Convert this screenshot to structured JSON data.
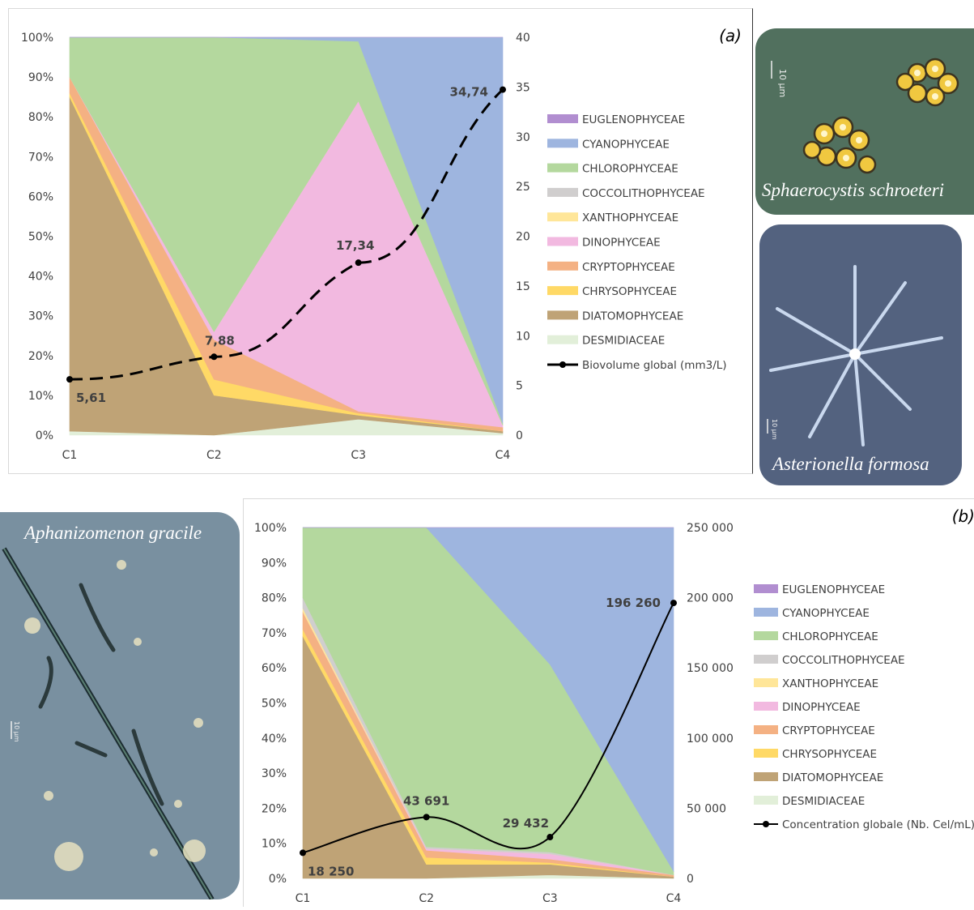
{
  "chart_data": [
    {
      "type": "area",
      "panel_label": "(a)",
      "stacking": "percent",
      "categories": [
        "C1",
        "C2",
        "C3",
        "C4"
      ],
      "ylim_left": [
        0,
        100
      ],
      "yticks_left": [
        "0%",
        "10%",
        "20%",
        "30%",
        "40%",
        "50%",
        "60%",
        "70%",
        "80%",
        "90%",
        "100%"
      ],
      "ylim_right": [
        0,
        40
      ],
      "yticks_right": [
        "0",
        "5",
        "10",
        "15",
        "20",
        "25",
        "30",
        "35",
        "40"
      ],
      "legend_position": "right",
      "grid": false,
      "series": [
        {
          "name": "DESMIDIACEAE",
          "color": "#e2efd9",
          "values": [
            1,
            0,
            4,
            0.5
          ]
        },
        {
          "name": "DIATOMOPHYCEAE",
          "color": "#bfa376",
          "values": [
            84,
            10,
            1,
            0.5
          ]
        },
        {
          "name": "CHRYSOPHYCEAE",
          "color": "#ffd966",
          "values": [
            1,
            4,
            0.5,
            0
          ]
        },
        {
          "name": "CRYPTOPHYCEAE",
          "color": "#f4b183",
          "values": [
            4,
            10,
            0.5,
            1
          ]
        },
        {
          "name": "DINOPHYCEAE",
          "color": "#f2b9e0",
          "values": [
            0,
            2,
            78,
            0.5
          ]
        },
        {
          "name": "XANTHOPHYCEAE",
          "color": "#ffe699",
          "values": [
            0,
            0,
            0,
            0
          ]
        },
        {
          "name": "COCCOLITHOPHYCEAE",
          "color": "#d0cece",
          "values": [
            0,
            0,
            0,
            0
          ]
        },
        {
          "name": "CHLOROPHYCEAE",
          "color": "#b4d89e",
          "values": [
            10,
            74,
            15,
            0.5
          ]
        },
        {
          "name": "CYANOPHYCEAE",
          "color": "#9eb5df",
          "values": [
            0,
            0,
            1,
            97
          ]
        },
        {
          "name": "EUGLENOPHYCEAE",
          "color": "#b18ed0",
          "values": [
            0,
            0,
            0,
            0
          ]
        }
      ],
      "line": {
        "name": "Biovolume global (mm3/L)",
        "axis": "right",
        "values": [
          5.61,
          7.88,
          17.34,
          34.74
        ],
        "labels": [
          "5,61",
          "7,88",
          "17,34",
          "34,74"
        ],
        "style": "dashed"
      },
      "legend_order": [
        "EUGLENOPHYCEAE",
        "CYANOPHYCEAE",
        "CHLOROPHYCEAE",
        "COCCOLITHOPHYCEAE",
        "XANTHOPHYCEAE",
        "DINOPHYCEAE",
        "CRYPTOPHYCEAE",
        "CHRYSOPHYCEAE",
        "DIATOMOPHYCEAE",
        "DESMIDIACEAE"
      ]
    },
    {
      "type": "area",
      "panel_label": "(b)",
      "stacking": "percent",
      "categories": [
        "C1",
        "C2",
        "C3",
        "C4"
      ],
      "ylim_left": [
        0,
        100
      ],
      "yticks_left": [
        "0%",
        "10%",
        "20%",
        "30%",
        "40%",
        "50%",
        "60%",
        "70%",
        "80%",
        "90%",
        "100%"
      ],
      "ylim_right": [
        0,
        250000
      ],
      "yticks_right": [
        "0",
        "50 000",
        "100 000",
        "150 000",
        "200 000",
        "250 000"
      ],
      "legend_position": "right",
      "grid": false,
      "series": [
        {
          "name": "DESMIDIACEAE",
          "color": "#e2efd9",
          "values": [
            0,
            0,
            1,
            0
          ]
        },
        {
          "name": "DIATOMOPHYCEAE",
          "color": "#bfa376",
          "values": [
            69,
            4,
            3,
            0.5
          ]
        },
        {
          "name": "CHRYSOPHYCEAE",
          "color": "#ffd966",
          "values": [
            2,
            2,
            0.5,
            0
          ]
        },
        {
          "name": "CRYPTOPHYCEAE",
          "color": "#f4b183",
          "values": [
            5,
            2,
            1,
            0.5
          ]
        },
        {
          "name": "DINOPHYCEAE",
          "color": "#f2b9e0",
          "values": [
            0,
            0.5,
            1.5,
            0
          ]
        },
        {
          "name": "XANTHOPHYCEAE",
          "color": "#ffe699",
          "values": [
            1,
            0,
            0,
            0
          ]
        },
        {
          "name": "COCCOLITHOPHYCEAE",
          "color": "#d0cece",
          "values": [
            3,
            0.5,
            0.5,
            0
          ]
        },
        {
          "name": "CHLOROPHYCEAE",
          "color": "#b4d89e",
          "values": [
            20,
            91,
            53.5,
            1
          ]
        },
        {
          "name": "CYANOPHYCEAE",
          "color": "#9eb5df",
          "values": [
            0,
            0,
            39,
            98
          ]
        },
        {
          "name": "EUGLENOPHYCEAE",
          "color": "#b18ed0",
          "values": [
            0,
            0,
            0,
            0
          ]
        }
      ],
      "line": {
        "name": "Concentration globale (Nb. Cel/mL)",
        "axis": "right",
        "values": [
          18250,
          43691,
          29432,
          196260
        ],
        "labels": [
          "18 250",
          "43 691",
          "29 432",
          "196 260"
        ],
        "style": "solid"
      },
      "legend_order": [
        "EUGLENOPHYCEAE",
        "CYANOPHYCEAE",
        "CHLOROPHYCEAE",
        "COCCOLITHOPHYCEAE",
        "XANTHOPHYCEAE",
        "DINOPHYCEAE",
        "CRYPTOPHYCEAE",
        "CHRYSOPHYCEAE",
        "DIATOMOPHYCEAE",
        "DESMIDIACEAE"
      ]
    }
  ],
  "photos": [
    {
      "caption": "Sphaerocystis schroeteri",
      "scale": "10 µm"
    },
    {
      "caption": "Asterionella formosa",
      "scale": "10 µm"
    },
    {
      "caption": "Aphanizomenon gracile",
      "scale": "10 µm"
    }
  ]
}
